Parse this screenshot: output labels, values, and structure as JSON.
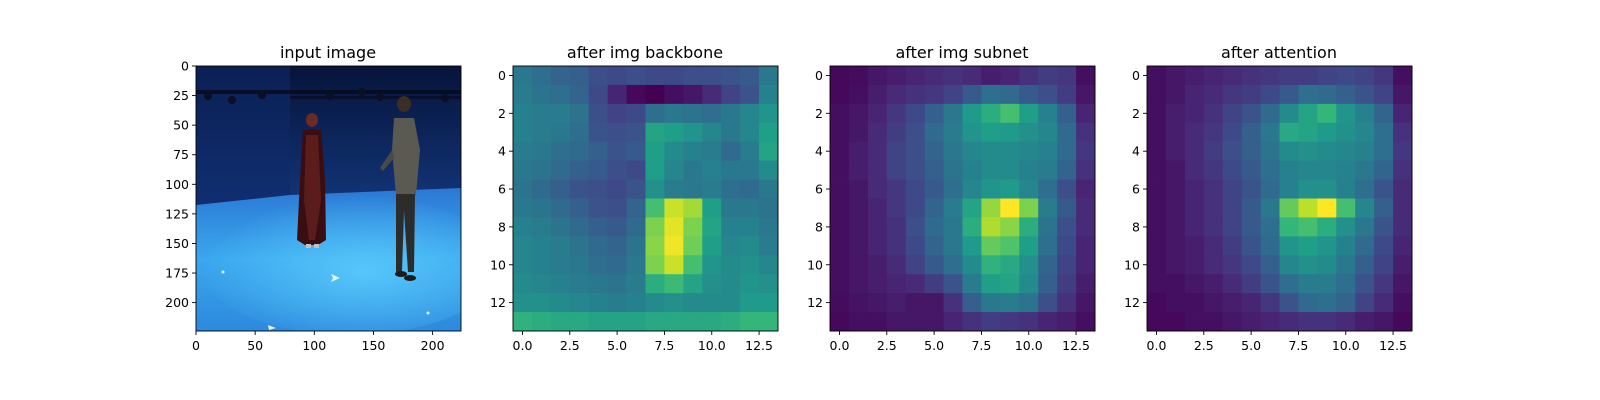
{
  "chart_data": [
    {
      "type": "image",
      "title": "input image",
      "xlim": [
        0,
        224
      ],
      "ylim": [
        224,
        0
      ],
      "xticks": [
        0,
        50,
        100,
        150,
        200
      ],
      "yticks": [
        0,
        25,
        50,
        75,
        100,
        125,
        150,
        175,
        200
      ],
      "xtick_labels": [
        "0",
        "50",
        "100",
        "150",
        "200"
      ],
      "ytick_labels": [
        "0",
        "25",
        "50",
        "75",
        "100",
        "125",
        "150",
        "175",
        "200"
      ]
    },
    {
      "type": "heatmap",
      "title": "after img backbone",
      "colormap": "viridis",
      "xlim": [
        -0.5,
        13.5
      ],
      "ylim": [
        13.5,
        -0.5
      ],
      "xticks": [
        0,
        2.5,
        5,
        7.5,
        10,
        12.5
      ],
      "yticks": [
        0,
        2,
        4,
        6,
        8,
        10,
        12
      ],
      "xtick_labels": [
        "0.0",
        "2.5",
        "5.0",
        "7.5",
        "10.0",
        "12.5"
      ],
      "ytick_labels": [
        "0",
        "2",
        "4",
        "6",
        "8",
        "10",
        "12"
      ],
      "values": [
        [
          0.4,
          0.36,
          0.32,
          0.3,
          0.24,
          0.22,
          0.24,
          0.22,
          0.22,
          0.24,
          0.24,
          0.26,
          0.28,
          0.4
        ],
        [
          0.42,
          0.38,
          0.36,
          0.32,
          0.22,
          0.1,
          0.02,
          0.0,
          0.04,
          0.06,
          0.12,
          0.2,
          0.26,
          0.44
        ],
        [
          0.44,
          0.42,
          0.42,
          0.38,
          0.24,
          0.2,
          0.22,
          0.36,
          0.4,
          0.38,
          0.36,
          0.4,
          0.46,
          0.52
        ],
        [
          0.44,
          0.42,
          0.4,
          0.36,
          0.26,
          0.24,
          0.26,
          0.58,
          0.56,
          0.52,
          0.46,
          0.4,
          0.46,
          0.56
        ],
        [
          0.42,
          0.4,
          0.36,
          0.34,
          0.3,
          0.26,
          0.28,
          0.56,
          0.48,
          0.44,
          0.42,
          0.34,
          0.42,
          0.58
        ],
        [
          0.4,
          0.38,
          0.34,
          0.3,
          0.28,
          0.24,
          0.22,
          0.56,
          0.46,
          0.4,
          0.44,
          0.4,
          0.4,
          0.48
        ],
        [
          0.38,
          0.34,
          0.3,
          0.26,
          0.24,
          0.22,
          0.26,
          0.5,
          0.42,
          0.4,
          0.42,
          0.36,
          0.34,
          0.4
        ],
        [
          0.4,
          0.38,
          0.34,
          0.3,
          0.26,
          0.24,
          0.32,
          0.7,
          0.92,
          0.86,
          0.56,
          0.4,
          0.4,
          0.38
        ],
        [
          0.44,
          0.42,
          0.38,
          0.34,
          0.3,
          0.28,
          0.34,
          0.8,
          0.96,
          0.8,
          0.58,
          0.44,
          0.44,
          0.4
        ],
        [
          0.46,
          0.44,
          0.42,
          0.38,
          0.34,
          0.32,
          0.38,
          0.82,
          0.98,
          0.78,
          0.56,
          0.46,
          0.48,
          0.42
        ],
        [
          0.46,
          0.44,
          0.42,
          0.4,
          0.36,
          0.34,
          0.4,
          0.8,
          0.92,
          0.7,
          0.52,
          0.48,
          0.5,
          0.46
        ],
        [
          0.48,
          0.46,
          0.44,
          0.42,
          0.4,
          0.38,
          0.42,
          0.62,
          0.68,
          0.58,
          0.5,
          0.48,
          0.52,
          0.5
        ],
        [
          0.5,
          0.5,
          0.48,
          0.46,
          0.44,
          0.42,
          0.44,
          0.48,
          0.5,
          0.48,
          0.48,
          0.48,
          0.54,
          0.54
        ],
        [
          0.64,
          0.62,
          0.6,
          0.6,
          0.58,
          0.58,
          0.58,
          0.6,
          0.6,
          0.6,
          0.6,
          0.62,
          0.66,
          0.66
        ]
      ]
    },
    {
      "type": "heatmap",
      "title": "after img subnet",
      "colormap": "viridis",
      "xlim": [
        -0.5,
        13.5
      ],
      "ylim": [
        13.5,
        -0.5
      ],
      "xticks": [
        0,
        2.5,
        5,
        7.5,
        10,
        12.5
      ],
      "yticks": [
        0,
        2,
        4,
        6,
        8,
        10,
        12
      ],
      "xtick_labels": [
        "0.0",
        "2.5",
        "5.0",
        "7.5",
        "10.0",
        "12.5"
      ],
      "ytick_labels": [
        "0",
        "2",
        "4",
        "6",
        "8",
        "10",
        "12"
      ],
      "values": [
        [
          0.02,
          0.03,
          0.06,
          0.08,
          0.1,
          0.12,
          0.14,
          0.12,
          0.08,
          0.1,
          0.14,
          0.18,
          0.16,
          0.04
        ],
        [
          0.02,
          0.04,
          0.08,
          0.12,
          0.14,
          0.16,
          0.2,
          0.28,
          0.36,
          0.34,
          0.28,
          0.24,
          0.18,
          0.06
        ],
        [
          0.04,
          0.06,
          0.1,
          0.16,
          0.22,
          0.3,
          0.4,
          0.54,
          0.62,
          0.7,
          0.56,
          0.44,
          0.3,
          0.1
        ],
        [
          0.04,
          0.06,
          0.12,
          0.18,
          0.24,
          0.34,
          0.42,
          0.52,
          0.56,
          0.54,
          0.5,
          0.46,
          0.34,
          0.14
        ],
        [
          0.04,
          0.08,
          0.12,
          0.2,
          0.24,
          0.32,
          0.4,
          0.46,
          0.48,
          0.48,
          0.46,
          0.44,
          0.34,
          0.16
        ],
        [
          0.04,
          0.08,
          0.12,
          0.2,
          0.24,
          0.3,
          0.38,
          0.44,
          0.48,
          0.48,
          0.44,
          0.42,
          0.32,
          0.14
        ],
        [
          0.04,
          0.06,
          0.12,
          0.16,
          0.22,
          0.28,
          0.36,
          0.46,
          0.52,
          0.54,
          0.46,
          0.36,
          0.24,
          0.1
        ],
        [
          0.04,
          0.06,
          0.1,
          0.16,
          0.22,
          0.32,
          0.42,
          0.58,
          0.84,
          1.0,
          0.8,
          0.42,
          0.28,
          0.12
        ],
        [
          0.04,
          0.06,
          0.1,
          0.14,
          0.24,
          0.34,
          0.4,
          0.62,
          0.88,
          0.82,
          0.62,
          0.38,
          0.24,
          0.12
        ],
        [
          0.04,
          0.06,
          0.1,
          0.14,
          0.22,
          0.32,
          0.4,
          0.54,
          0.76,
          0.72,
          0.56,
          0.36,
          0.22,
          0.1
        ],
        [
          0.04,
          0.06,
          0.08,
          0.12,
          0.2,
          0.28,
          0.36,
          0.48,
          0.64,
          0.6,
          0.5,
          0.32,
          0.2,
          0.1
        ],
        [
          0.04,
          0.06,
          0.08,
          0.1,
          0.12,
          0.18,
          0.26,
          0.42,
          0.56,
          0.58,
          0.48,
          0.3,
          0.18,
          0.08
        ],
        [
          0.03,
          0.05,
          0.06,
          0.08,
          0.06,
          0.06,
          0.14,
          0.3,
          0.4,
          0.42,
          0.38,
          0.24,
          0.14,
          0.06
        ],
        [
          0.02,
          0.04,
          0.04,
          0.06,
          0.06,
          0.06,
          0.1,
          0.14,
          0.18,
          0.16,
          0.14,
          0.1,
          0.08,
          0.04
        ]
      ]
    },
    {
      "type": "heatmap",
      "title": "after attention",
      "colormap": "viridis",
      "xlim": [
        -0.5,
        13.5
      ],
      "ylim": [
        13.5,
        -0.5
      ],
      "xticks": [
        0,
        2.5,
        5,
        7.5,
        10,
        12.5
      ],
      "yticks": [
        0,
        2,
        4,
        6,
        8,
        10,
        12
      ],
      "xtick_labels": [
        "0.0",
        "2.5",
        "5.0",
        "7.5",
        "10.0",
        "12.5"
      ],
      "ytick_labels": [
        "0",
        "2",
        "4",
        "6",
        "8",
        "10",
        "12"
      ],
      "values": [
        [
          0.04,
          0.06,
          0.08,
          0.1,
          0.12,
          0.14,
          0.16,
          0.18,
          0.18,
          0.2,
          0.22,
          0.2,
          0.16,
          0.04
        ],
        [
          0.04,
          0.06,
          0.1,
          0.12,
          0.16,
          0.18,
          0.22,
          0.28,
          0.36,
          0.34,
          0.3,
          0.26,
          0.2,
          0.06
        ],
        [
          0.04,
          0.08,
          0.1,
          0.14,
          0.2,
          0.26,
          0.34,
          0.48,
          0.58,
          0.66,
          0.52,
          0.44,
          0.32,
          0.1
        ],
        [
          0.04,
          0.08,
          0.12,
          0.16,
          0.22,
          0.3,
          0.4,
          0.6,
          0.58,
          0.54,
          0.5,
          0.46,
          0.36,
          0.14
        ],
        [
          0.04,
          0.08,
          0.12,
          0.18,
          0.24,
          0.3,
          0.38,
          0.48,
          0.5,
          0.48,
          0.46,
          0.44,
          0.36,
          0.16
        ],
        [
          0.04,
          0.06,
          0.12,
          0.16,
          0.22,
          0.28,
          0.36,
          0.44,
          0.46,
          0.46,
          0.44,
          0.4,
          0.32,
          0.14
        ],
        [
          0.04,
          0.06,
          0.1,
          0.14,
          0.2,
          0.26,
          0.34,
          0.44,
          0.5,
          0.5,
          0.44,
          0.36,
          0.26,
          0.12
        ],
        [
          0.04,
          0.06,
          0.1,
          0.14,
          0.2,
          0.28,
          0.4,
          0.76,
          0.9,
          1.0,
          0.7,
          0.46,
          0.3,
          0.12
        ],
        [
          0.04,
          0.06,
          0.1,
          0.14,
          0.2,
          0.28,
          0.36,
          0.66,
          0.7,
          0.62,
          0.5,
          0.4,
          0.26,
          0.12
        ],
        [
          0.04,
          0.06,
          0.08,
          0.12,
          0.18,
          0.26,
          0.34,
          0.52,
          0.56,
          0.52,
          0.44,
          0.34,
          0.22,
          0.1
        ],
        [
          0.04,
          0.06,
          0.08,
          0.12,
          0.16,
          0.22,
          0.3,
          0.46,
          0.5,
          0.48,
          0.4,
          0.3,
          0.2,
          0.08
        ],
        [
          0.04,
          0.04,
          0.06,
          0.08,
          0.12,
          0.18,
          0.26,
          0.36,
          0.42,
          0.42,
          0.36,
          0.26,
          0.16,
          0.06
        ],
        [
          0.02,
          0.04,
          0.04,
          0.06,
          0.08,
          0.1,
          0.16,
          0.26,
          0.34,
          0.36,
          0.32,
          0.2,
          0.12,
          0.04
        ],
        [
          0.02,
          0.02,
          0.04,
          0.04,
          0.06,
          0.08,
          0.1,
          0.12,
          0.14,
          0.14,
          0.12,
          0.08,
          0.06,
          0.02
        ]
      ]
    }
  ]
}
